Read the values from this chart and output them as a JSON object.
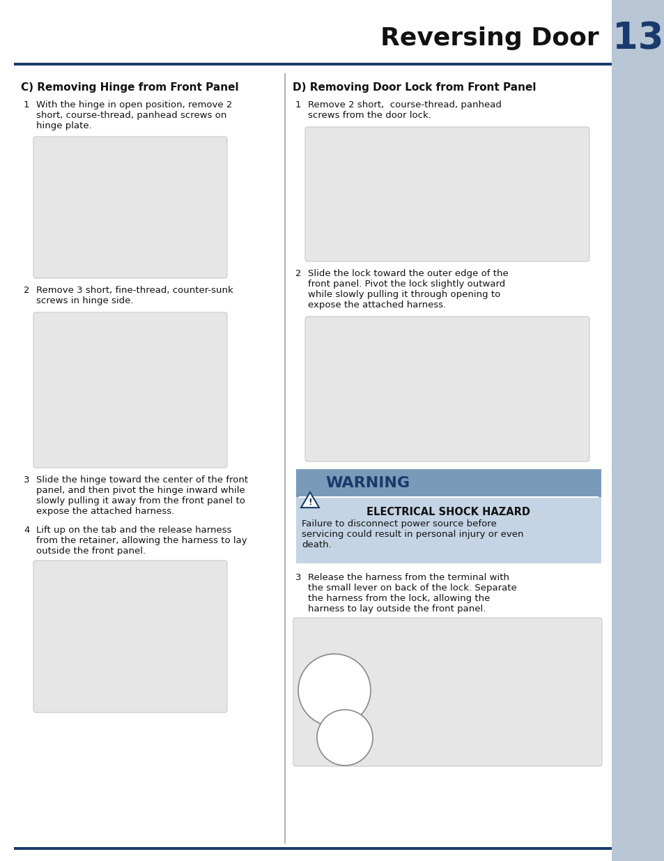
{
  "page_title": "Reversing Door",
  "page_number": "13",
  "bg_color": "#ffffff",
  "sidebar_color": "#b8c6d6",
  "header_line_color": "#1a3a6b",
  "footer_line_color": "#1a3a6b",
  "divider_color": "#b0b0b0",
  "section_c_title": "C) Removing Hinge from Front Panel",
  "section_d_title": "D) Removing Door Lock from Front Panel",
  "warning_bg": "#c4d4e4",
  "warning_header_bg": "#7a9ab8",
  "warning_title": "WARNING",
  "warning_subtitle": "ELECTRICAL SHOCK HAZARD",
  "warning_body": "Failure to disconnect power source before\nservicing could result in personal injury or even\ndeath.",
  "image_bg": "#e6e6e6",
  "image_edge": "#c8c8c8"
}
